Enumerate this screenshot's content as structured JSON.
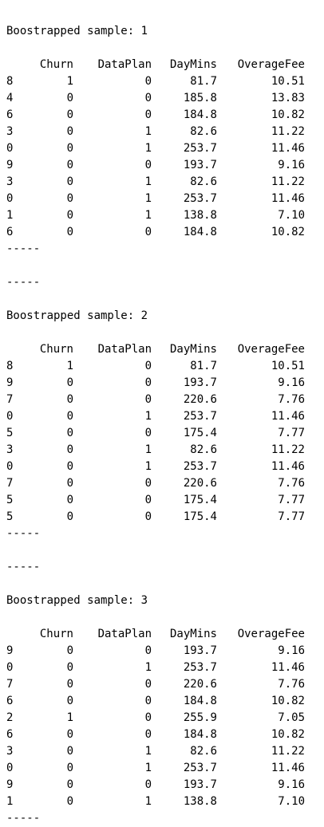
{
  "separator": "-----",
  "columns": [
    "",
    "Churn",
    "DataPlan",
    "DayMins",
    "OverageFee"
  ],
  "samples": [
    {
      "title": "Boostrapped sample: 1",
      "rows": [
        [
          "8",
          "1",
          "0",
          "81.7",
          "10.51"
        ],
        [
          "4",
          "0",
          "0",
          "185.8",
          "13.83"
        ],
        [
          "6",
          "0",
          "0",
          "184.8",
          "10.82"
        ],
        [
          "3",
          "0",
          "1",
          "82.6",
          "11.22"
        ],
        [
          "0",
          "0",
          "1",
          "253.7",
          "11.46"
        ],
        [
          "9",
          "0",
          "0",
          "193.7",
          "9.16"
        ],
        [
          "3",
          "0",
          "1",
          "82.6",
          "11.22"
        ],
        [
          "0",
          "0",
          "1",
          "253.7",
          "11.46"
        ],
        [
          "1",
          "0",
          "1",
          "138.8",
          "7.10"
        ],
        [
          "6",
          "0",
          "0",
          "184.8",
          "10.82"
        ]
      ]
    },
    {
      "title": "Boostrapped sample: 2",
      "rows": [
        [
          "8",
          "1",
          "0",
          "81.7",
          "10.51"
        ],
        [
          "9",
          "0",
          "0",
          "193.7",
          "9.16"
        ],
        [
          "7",
          "0",
          "0",
          "220.6",
          "7.76"
        ],
        [
          "0",
          "0",
          "1",
          "253.7",
          "11.46"
        ],
        [
          "5",
          "0",
          "0",
          "175.4",
          "7.77"
        ],
        [
          "3",
          "0",
          "1",
          "82.6",
          "11.22"
        ],
        [
          "0",
          "0",
          "1",
          "253.7",
          "11.46"
        ],
        [
          "7",
          "0",
          "0",
          "220.6",
          "7.76"
        ],
        [
          "5",
          "0",
          "0",
          "175.4",
          "7.77"
        ],
        [
          "5",
          "0",
          "0",
          "175.4",
          "7.77"
        ]
      ]
    },
    {
      "title": "Boostrapped sample: 3",
      "rows": [
        [
          "9",
          "0",
          "0",
          "193.7",
          "9.16"
        ],
        [
          "0",
          "0",
          "1",
          "253.7",
          "11.46"
        ],
        [
          "7",
          "0",
          "0",
          "220.6",
          "7.76"
        ],
        [
          "6",
          "0",
          "0",
          "184.8",
          "10.82"
        ],
        [
          "2",
          "1",
          "0",
          "255.9",
          "7.05"
        ],
        [
          "6",
          "0",
          "0",
          "184.8",
          "10.82"
        ],
        [
          "3",
          "0",
          "1",
          "82.6",
          "11.22"
        ],
        [
          "0",
          "0",
          "1",
          "253.7",
          "11.46"
        ],
        [
          "9",
          "0",
          "0",
          "193.7",
          "9.16"
        ],
        [
          "1",
          "0",
          "1",
          "138.8",
          "7.10"
        ]
      ]
    }
  ]
}
